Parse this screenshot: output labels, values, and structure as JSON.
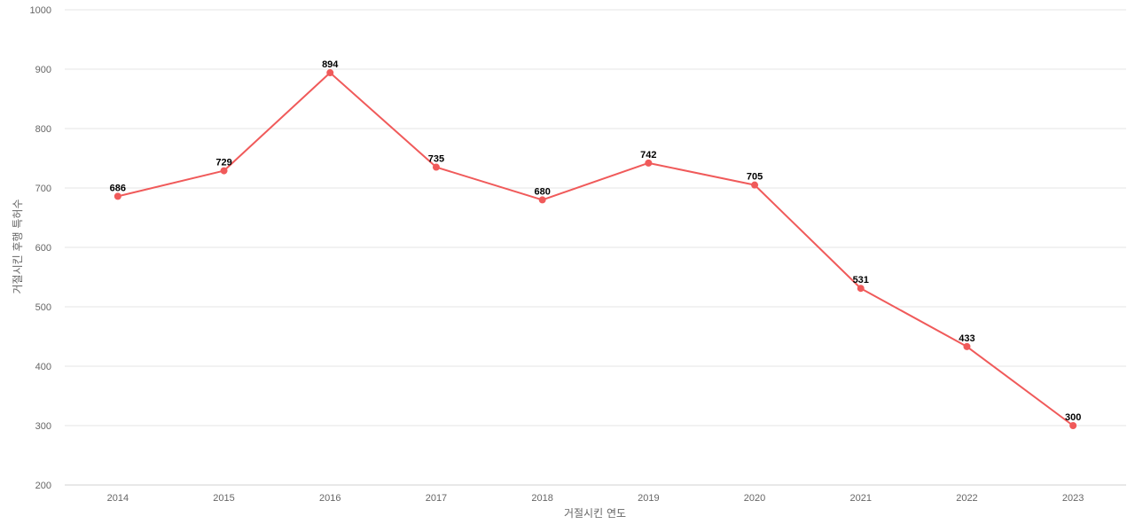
{
  "chart_data": {
    "type": "line",
    "title": "",
    "xlabel": "거절시킨 연도",
    "ylabel": "거절시킨 후행 특허수",
    "categories": [
      "2014",
      "2015",
      "2016",
      "2017",
      "2018",
      "2019",
      "2020",
      "2021",
      "2022",
      "2023"
    ],
    "series": [
      {
        "values": [
          686,
          729,
          894,
          735,
          680,
          742,
          705,
          531,
          433,
          300
        ],
        "color": "#f05a5a"
      }
    ],
    "ylim": [
      200,
      1000
    ],
    "yticks": [
      200,
      300,
      400,
      500,
      600,
      700,
      800,
      900,
      1000
    ],
    "grid": true,
    "legend": "none",
    "data_labels": true
  }
}
